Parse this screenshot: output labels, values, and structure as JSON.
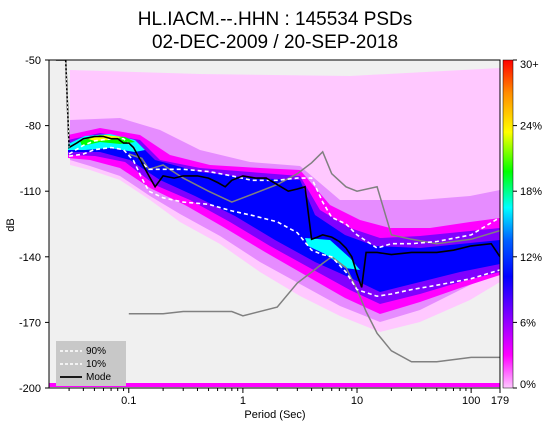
{
  "chart_data": {
    "type": "heatmap",
    "title": "HL.IACM.--.HHN : 145534 PSDs",
    "subtitle": "02-DEC-2009 / 20-SEP-2018",
    "xlabel": "Period (Sec)",
    "ylabel": "dB",
    "x_scale": "log",
    "xlim": [
      0.02,
      179
    ],
    "ylim": [
      -200,
      -50
    ],
    "x_ticks": [
      {
        "value": 0.1,
        "label": "0.1"
      },
      {
        "value": 1,
        "label": "1"
      },
      {
        "value": 10,
        "label": "10"
      },
      {
        "value": 100,
        "label": "100"
      },
      {
        "value": 179,
        "label": "179"
      }
    ],
    "y_ticks": [
      {
        "value": -50,
        "label": "-50"
      },
      {
        "value": -80,
        "label": "-80"
      },
      {
        "value": -110,
        "label": "-110"
      },
      {
        "value": -140,
        "label": "-140"
      },
      {
        "value": -170,
        "label": "-170"
      },
      {
        "value": -200,
        "label": "-200"
      }
    ],
    "colorbar": {
      "labels": [
        "30+",
        "24%",
        "18%",
        "12%",
        "6%",
        "0%"
      ],
      "colors": [
        "#ff0000",
        "#ff8c00",
        "#ffff00",
        "#00ff00",
        "#00ffff",
        "#0060ff",
        "#0000ff",
        "#8000ff",
        "#ff00ff",
        "#ffc8ff"
      ]
    },
    "legend": {
      "position": "bottom-left",
      "entries": [
        {
          "label": "90%",
          "style": "dashed",
          "color": "#ffffff"
        },
        {
          "label": "10%",
          "style": "dashed",
          "color": "#ffffff"
        },
        {
          "label": "Mode",
          "style": "solid",
          "color": "#000000"
        }
      ]
    },
    "series": [
      {
        "name": "90%",
        "color": "#ffffff",
        "style": "dashed",
        "x": [
          0.03,
          0.04,
          0.05,
          0.07,
          0.09,
          0.11,
          0.13,
          0.15,
          0.2,
          0.3,
          0.5,
          0.8,
          1.2,
          2,
          3,
          4,
          5,
          6,
          8,
          10,
          15,
          20,
          30,
          50,
          100,
          179
        ],
        "y": [
          -93,
          -89,
          -87,
          -86,
          -86,
          -90,
          -97,
          -100,
          -100,
          -100,
          -101,
          -103,
          -105,
          -105,
          -104,
          -104,
          -115,
          -122,
          -125,
          -130,
          -136,
          -134,
          -134,
          -133,
          -130,
          -122
        ]
      },
      {
        "name": "10%",
        "color": "#ffffff",
        "style": "dashed",
        "x": [
          0.03,
          0.04,
          0.05,
          0.07,
          0.09,
          0.11,
          0.13,
          0.15,
          0.2,
          0.3,
          0.5,
          0.8,
          1.2,
          2,
          3,
          4,
          5,
          6,
          8,
          10,
          15,
          20,
          30,
          50,
          100,
          179
        ],
        "y": [
          -94,
          -93,
          -91,
          -90,
          -91,
          -96,
          -104,
          -110,
          -113,
          -115,
          -116,
          -119,
          -121,
          -124,
          -129,
          -137,
          -139,
          -140,
          -147,
          -155,
          -158,
          -157,
          -155,
          -153,
          -150,
          -146
        ]
      },
      {
        "name": "Mode",
        "color": "#000000",
        "style": "solid",
        "x": [
          0.023,
          0.028,
          0.03,
          0.035,
          0.04,
          0.05,
          0.06,
          0.07,
          0.08,
          0.09,
          0.1,
          0.11,
          0.13,
          0.15,
          0.17,
          0.2,
          0.25,
          0.3,
          0.4,
          0.5,
          0.6,
          0.7,
          0.8,
          1,
          1.3,
          1.6,
          2,
          2.5,
          3,
          3.5,
          4,
          4.5,
          5,
          6,
          7,
          8,
          9,
          10,
          11,
          12,
          15,
          20,
          30,
          50,
          70,
          100,
          150,
          179
        ],
        "y": [
          -50,
          -50,
          -90,
          -88,
          -86,
          -85,
          -85,
          -86,
          -86,
          -88,
          -88,
          -90,
          -97,
          -103,
          -108,
          -103,
          -104,
          -103,
          -103,
          -104,
          -106,
          -108,
          -105,
          -103,
          -104,
          -104,
          -107,
          -110,
          -109,
          -108,
          -132,
          -131,
          -130,
          -131,
          -133,
          -136,
          -140,
          -148,
          -154,
          -138,
          -138,
          -139,
          -138,
          -138,
          -137,
          -135,
          -134,
          -140
        ]
      },
      {
        "name": "",
        "color": "#808080",
        "style": "solid",
        "x": [
          0.1,
          0.2,
          0.3,
          0.5,
          0.8,
          1,
          2,
          3,
          4,
          5,
          6,
          8,
          10,
          12,
          15,
          20,
          30,
          50,
          100,
          179
        ],
        "y": [
          -166,
          -166,
          -165,
          -165,
          -165,
          -167,
          -163,
          -152,
          -147,
          -143,
          -140,
          -145,
          -155,
          -165,
          -175,
          -183,
          -188,
          -188,
          -186,
          -186
        ]
      },
      {
        "name": "",
        "color": "#808080",
        "style": "solid",
        "x": [
          0.1,
          0.13,
          0.15,
          0.2,
          0.3,
          0.5,
          0.8,
          1,
          2,
          3,
          4,
          5,
          6,
          8,
          10,
          15,
          20,
          30,
          50,
          100,
          179
        ],
        "y": [
          -93,
          -95,
          -100,
          -98,
          -104,
          -110,
          -115,
          -113,
          -107,
          -102,
          -97,
          -92,
          -102,
          -108,
          -110,
          -108,
          -130,
          -132,
          -134,
          -132,
          -128
        ]
      }
    ]
  }
}
